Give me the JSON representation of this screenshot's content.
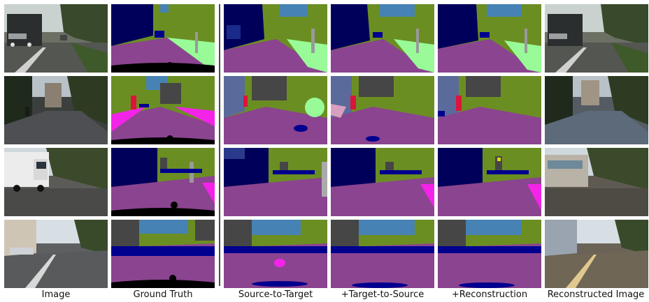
{
  "columns": [
    {
      "label": "Image"
    },
    {
      "label": "Ground Truth"
    },
    {
      "label": "Source-to-Target"
    },
    {
      "label": "+Target-to-Source"
    },
    {
      "label": "+Reconstruction"
    },
    {
      "label": "Reconstructed Image"
    }
  ],
  "rows": [
    {
      "scene": "truck-highway"
    },
    {
      "scene": "cyclist-street"
    },
    {
      "scene": "white-truck-street"
    },
    {
      "scene": "city-street"
    }
  ],
  "colors": {
    "road": "#8b448f",
    "vegetation": "#6b8e23",
    "sky": "#4682b4",
    "building": "#464646",
    "car": "#00008e",
    "sidewalk": "#f423e8",
    "terrain": "#98fb98",
    "person": "#dc143c",
    "pole": "#999999",
    "sign": "#dcdc00"
  }
}
